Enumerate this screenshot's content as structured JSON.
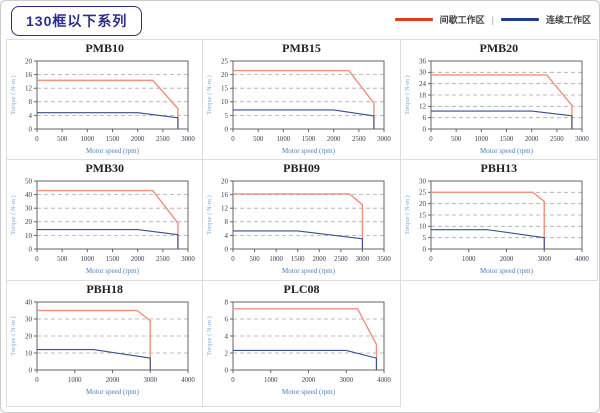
{
  "header": {
    "title": "130框以下系列",
    "legend": [
      {
        "label": "间歇工作区",
        "color": "#e8391d"
      },
      {
        "label": "连续工作区",
        "color": "#1e3d8f"
      }
    ],
    "legend_separator": "|"
  },
  "style": {
    "line_red": "#f0907e",
    "line_blue": "#3a4f8f",
    "grid_color": "#aaaaaa",
    "axis_color": "#666666",
    "tick_text_color": "#3c3c50",
    "xlabel_color": "#4a7ebc",
    "ylabel_color": "#7badde",
    "cell_border_color": "#dddddd",
    "title_box_color": "#2b2e8c"
  },
  "chart_data": [
    {
      "type": "line",
      "title": "PMB10",
      "xlabel": "Motor speed (rpm)",
      "ylabel": "Torque ( N-m )",
      "xlim": [
        0,
        3000
      ],
      "xstep": 500,
      "ylim": [
        0,
        20
      ],
      "ystep": 4,
      "grid": true,
      "series": [
        {
          "name": "间歇工作区",
          "color_key": "line_red",
          "points": [
            [
              0,
              14.3
            ],
            [
              2300,
              14.3
            ],
            [
              2800,
              6
            ],
            [
              2800,
              0
            ]
          ]
        },
        {
          "name": "连续工作区",
          "color_key": "line_blue",
          "points": [
            [
              0,
              4.8
            ],
            [
              2000,
              4.8
            ],
            [
              2800,
              3.3
            ],
            [
              2800,
              0
            ]
          ]
        }
      ]
    },
    {
      "type": "line",
      "title": "PMB15",
      "xlabel": "Motor speed (rpm)",
      "ylabel": "Torque ( N-m )",
      "xlim": [
        0,
        3000
      ],
      "xstep": 500,
      "ylim": [
        0,
        25
      ],
      "ystep": 5,
      "grid": true,
      "series": [
        {
          "name": "间歇工作区",
          "color_key": "line_red",
          "points": [
            [
              0,
              21.5
            ],
            [
              2300,
              21.5
            ],
            [
              2800,
              9.5
            ],
            [
              2800,
              0
            ]
          ]
        },
        {
          "name": "连续工作区",
          "color_key": "line_blue",
          "points": [
            [
              0,
              7
            ],
            [
              2000,
              7
            ],
            [
              2800,
              4.8
            ],
            [
              2800,
              0
            ]
          ]
        }
      ]
    },
    {
      "type": "line",
      "title": "PMB20",
      "xlabel": "Motor speed (rpm)",
      "ylabel": "Torque ( N-m )",
      "xlim": [
        0,
        3000
      ],
      "xstep": 500,
      "ylim": [
        0,
        36
      ],
      "ystep": 6,
      "grid": true,
      "series": [
        {
          "name": "间歇工作区",
          "color_key": "line_red",
          "points": [
            [
              0,
              28.6
            ],
            [
              2300,
              28.6
            ],
            [
              2800,
              12.5
            ],
            [
              2800,
              0
            ]
          ]
        },
        {
          "name": "连续工作区",
          "color_key": "line_blue",
          "points": [
            [
              0,
              9.5
            ],
            [
              2000,
              9.5
            ],
            [
              2800,
              7
            ],
            [
              2800,
              0
            ]
          ]
        }
      ]
    },
    {
      "type": "line",
      "title": "PMB30",
      "xlabel": "Motor speed (rpm)",
      "ylabel": "Torque ( N-m )",
      "xlim": [
        0,
        3000
      ],
      "xstep": 500,
      "ylim": [
        0,
        50
      ],
      "ystep": 10,
      "grid": true,
      "series": [
        {
          "name": "间歇工作区",
          "color_key": "line_red",
          "points": [
            [
              0,
              43
            ],
            [
              2300,
              43
            ],
            [
              2800,
              19
            ],
            [
              2800,
              0
            ]
          ]
        },
        {
          "name": "连续工作区",
          "color_key": "line_blue",
          "points": [
            [
              0,
              14.3
            ],
            [
              2000,
              14.3
            ],
            [
              2800,
              10.5
            ],
            [
              2800,
              0
            ]
          ]
        }
      ]
    },
    {
      "type": "line",
      "title": "PBH09",
      "xlabel": "Motor speed (rpm)",
      "ylabel": "Torque ( N-m )",
      "xlim": [
        0,
        3500
      ],
      "xstep": 500,
      "ylim": [
        0,
        20
      ],
      "ystep": 4,
      "grid": true,
      "series": [
        {
          "name": "间歇工作区",
          "color_key": "line_red",
          "points": [
            [
              0,
              16.2
            ],
            [
              2700,
              16.2
            ],
            [
              3000,
              13
            ],
            [
              3000,
              0
            ]
          ]
        },
        {
          "name": "连续工作区",
          "color_key": "line_blue",
          "points": [
            [
              0,
              5.3
            ],
            [
              1500,
              5.3
            ],
            [
              3000,
              3
            ],
            [
              3000,
              0
            ]
          ]
        }
      ]
    },
    {
      "type": "line",
      "title": "PBH13",
      "xlabel": "Motor speed (rpm)",
      "ylabel": "Torque ( N-m )",
      "xlim": [
        0,
        4000
      ],
      "xstep": 1000,
      "ylim": [
        0,
        30
      ],
      "ystep": 5,
      "grid": true,
      "series": [
        {
          "name": "间歇工作区",
          "color_key": "line_red",
          "points": [
            [
              0,
              25
            ],
            [
              2700,
              25
            ],
            [
              3000,
              21
            ],
            [
              3000,
              0
            ]
          ]
        },
        {
          "name": "连续工作区",
          "color_key": "line_blue",
          "points": [
            [
              0,
              8.5
            ],
            [
              1500,
              8.5
            ],
            [
              3000,
              5
            ],
            [
              3000,
              0
            ]
          ]
        }
      ]
    },
    {
      "type": "line",
      "title": "PBH18",
      "xlabel": "Motor speed (rpm)",
      "ylabel": "Torque ( N-m )",
      "xlim": [
        0,
        4000
      ],
      "xstep": 1000,
      "ylim": [
        0,
        40
      ],
      "ystep": 10,
      "grid": true,
      "series": [
        {
          "name": "间歇工作区",
          "color_key": "line_red",
          "points": [
            [
              0,
              35
            ],
            [
              2650,
              35
            ],
            [
              3000,
              29
            ],
            [
              3000,
              0
            ]
          ]
        },
        {
          "name": "连续工作区",
          "color_key": "line_blue",
          "points": [
            [
              0,
              12
            ],
            [
              1500,
              12
            ],
            [
              3000,
              7
            ],
            [
              3000,
              0
            ]
          ]
        }
      ]
    },
    {
      "type": "line",
      "title": "PLC08",
      "xlabel": "Motor speed (rpm)",
      "ylabel": "Torque ( N-m )",
      "xlim": [
        0,
        4000
      ],
      "xstep": 1000,
      "ylim": [
        0,
        8
      ],
      "ystep": 2,
      "grid": true,
      "series": [
        {
          "name": "间歇工作区",
          "color_key": "line_red",
          "points": [
            [
              0,
              7.2
            ],
            [
              3300,
              7.2
            ],
            [
              3800,
              3
            ],
            [
              3800,
              0
            ]
          ]
        },
        {
          "name": "连续工作区",
          "color_key": "line_blue",
          "points": [
            [
              0,
              2.3
            ],
            [
              3000,
              2.3
            ],
            [
              3800,
              1.4
            ],
            [
              3800,
              0
            ]
          ]
        }
      ]
    }
  ]
}
